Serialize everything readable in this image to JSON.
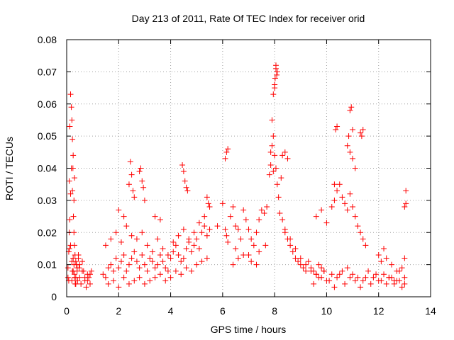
{
  "chart_data": {
    "type": "scatter",
    "title": "Day 213 of 2011, Rate Of TEC Index for receiver orid",
    "xlabel": "GPS time / hours",
    "ylabel": "ROTI / TECUs",
    "xlim": [
      0,
      14
    ],
    "ylim": [
      0,
      0.08
    ],
    "x_ticks": [
      0,
      2,
      4,
      6,
      8,
      10,
      12,
      14
    ],
    "x_tick_labels": [
      "0",
      "2",
      "4",
      "6",
      "8",
      "10",
      "12",
      "14"
    ],
    "y_ticks": [
      0,
      0.01,
      0.02,
      0.03,
      0.04,
      0.05,
      0.06,
      0.07,
      0.08
    ],
    "y_tick_labels": [
      "0",
      "0.01",
      "0.02",
      "0.03",
      "0.04",
      "0.05",
      "0.06",
      "0.07",
      "0.08"
    ],
    "grid": true,
    "marker": "+",
    "color": "#ff0000",
    "series": [
      {
        "x": [
          0.05,
          0.08,
          0.1,
          0.12,
          0.15,
          0.18,
          0.2,
          0.22,
          0.25,
          0.28,
          0.3,
          0.33,
          0.35,
          0.38,
          0.4,
          0.42,
          0.45,
          0.48,
          0.5,
          0.55,
          0.6,
          0.65,
          0.7,
          0.75,
          0.8,
          0.85,
          0.9,
          0.95,
          0.08,
          0.1,
          0.12,
          0.15,
          0.18,
          0.2,
          0.22,
          0.25,
          0.28,
          0.3,
          0.32,
          0.35,
          0.4,
          0.45,
          0.5,
          0.6,
          0.7,
          0.8,
          0.9,
          0.15,
          0.2,
          0.25,
          0.3,
          0.35,
          0.05,
          0.1,
          0.3,
          0.28,
          0.26,
          0.24,
          0.22,
          1.4,
          1.5,
          1.6,
          1.7,
          1.8,
          1.9,
          2.0,
          2.1,
          2.2,
          2.3,
          2.4,
          2.5,
          2.6,
          2.7,
          2.8,
          2.9,
          3.0,
          3.1,
          3.2,
          3.3,
          3.4,
          3.5,
          3.6,
          3.7,
          3.8,
          3.9,
          4.0,
          4.1,
          4.2,
          4.3,
          4.4,
          4.5,
          4.6,
          4.7,
          4.8,
          4.9,
          5.0,
          5.1,
          5.2,
          5.3,
          5.4,
          5.5,
          1.5,
          1.7,
          1.9,
          2.1,
          2.3,
          2.5,
          2.7,
          2.9,
          3.1,
          3.3,
          3.5,
          3.7,
          3.9,
          4.1,
          4.3,
          4.5,
          4.7,
          4.9,
          5.1,
          5.3,
          5.5,
          1.6,
          1.8,
          2.0,
          2.2,
          2.4,
          2.6,
          2.8,
          3.0,
          3.2,
          3.4,
          3.6,
          3.8,
          4.0,
          4.2,
          4.4,
          4.6,
          4.8,
          5.0,
          5.2,
          5.4,
          2.0,
          2.2,
          2.4,
          2.45,
          2.5,
          2.55,
          2.6,
          2.8,
          2.85,
          2.9,
          2.95,
          3.0,
          3.4,
          3.6,
          4.45,
          4.5,
          4.55,
          4.6,
          4.65,
          5.4,
          5.45,
          5.8,
          6.0,
          6.1,
          6.15,
          6.2,
          6.3,
          6.4,
          6.5,
          6.6,
          6.7,
          6.8,
          6.9,
          7.0,
          7.1,
          7.2,
          7.3,
          7.4,
          7.5,
          7.6,
          7.7,
          6.1,
          6.15,
          6.2,
          6.5,
          6.8,
          7.1,
          7.4,
          7.65,
          6.4,
          6.6,
          7.0,
          7.3,
          7.8,
          7.85,
          7.9,
          7.95,
          8.0,
          8.05,
          8.1,
          8.15,
          8.2,
          8.3,
          8.4,
          8.5,
          8.6,
          8.7,
          8.8,
          8.9,
          9.0,
          9.1,
          9.2,
          9.3,
          9.4,
          9.5,
          9.6,
          9.7,
          9.8,
          9.9,
          7.9,
          7.95,
          8.0,
          8.02,
          8.05,
          8.08,
          8.1,
          8.0,
          8.05,
          7.85,
          7.95,
          8.3,
          8.4,
          8.5,
          8.25,
          8.4,
          8.6,
          8.8,
          9.0,
          9.2,
          9.4,
          9.6,
          9.8,
          10.0,
          10.2,
          10.4,
          10.6,
          10.8,
          11.0,
          11.2,
          11.4,
          11.6,
          11.8,
          12.0,
          12.2,
          12.4,
          12.6,
          12.8,
          13.0,
          9.6,
          9.8,
          10.0,
          10.2,
          10.3,
          10.4,
          10.5,
          10.6,
          10.7,
          10.8,
          10.9,
          11.0,
          11.1,
          11.2,
          11.3,
          11.4,
          11.5,
          10.3,
          10.35,
          10.4,
          10.8,
          10.85,
          10.9,
          10.95,
          11.0,
          11.3,
          11.35,
          11.4,
          10.9,
          11.0,
          11.1,
          9.5,
          9.7,
          9.9,
          10.1,
          10.3,
          10.5,
          10.7,
          10.9,
          11.1,
          11.3,
          11.5,
          11.7,
          11.9,
          12.1,
          12.3,
          12.5,
          12.7,
          12.9,
          13.0,
          12.0,
          12.1,
          12.2,
          12.3,
          12.5,
          12.7,
          12.9,
          13.0,
          13.05,
          13.05,
          13.0,
          12.8,
          12.6,
          12.4
        ],
        "y": [
          0.006,
          0.005,
          0.015,
          0.024,
          0.032,
          0.04,
          0.005,
          0.008,
          0.012,
          0.01,
          0.007,
          0.004,
          0.006,
          0.01,
          0.008,
          0.005,
          0.012,
          0.009,
          0.006,
          0.004,
          0.011,
          0.008,
          0.005,
          0.003,
          0.007,
          0.006,
          0.004,
          0.008,
          0.014,
          0.036,
          0.053,
          0.063,
          0.059,
          0.055,
          0.049,
          0.044,
          0.02,
          0.016,
          0.013,
          0.011,
          0.009,
          0.013,
          0.01,
          0.008,
          0.006,
          0.005,
          0.007,
          0.016,
          0.011,
          0.008,
          0.006,
          0.004,
          0.009,
          0.02,
          0.037,
          0.03,
          0.025,
          0.04,
          0.033,
          0.007,
          0.006,
          0.009,
          0.01,
          0.008,
          0.012,
          0.009,
          0.011,
          0.013,
          0.008,
          0.01,
          0.012,
          0.014,
          0.011,
          0.009,
          0.013,
          0.01,
          0.008,
          0.012,
          0.011,
          0.009,
          0.01,
          0.013,
          0.011,
          0.009,
          0.008,
          0.012,
          0.014,
          0.016,
          0.013,
          0.011,
          0.012,
          0.015,
          0.017,
          0.014,
          0.016,
          0.018,
          0.015,
          0.02,
          0.022,
          0.019,
          0.021,
          0.016,
          0.018,
          0.02,
          0.017,
          0.022,
          0.019,
          0.018,
          0.02,
          0.016,
          0.014,
          0.018,
          0.015,
          0.013,
          0.017,
          0.019,
          0.021,
          0.018,
          0.02,
          0.023,
          0.025,
          0.028,
          0.004,
          0.005,
          0.003,
          0.006,
          0.004,
          0.005,
          0.006,
          0.004,
          0.005,
          0.006,
          0.007,
          0.005,
          0.006,
          0.008,
          0.007,
          0.009,
          0.008,
          0.01,
          0.011,
          0.012,
          0.027,
          0.025,
          0.035,
          0.042,
          0.038,
          0.033,
          0.031,
          0.039,
          0.04,
          0.036,
          0.034,
          0.03,
          0.025,
          0.024,
          0.041,
          0.039,
          0.036,
          0.034,
          0.033,
          0.031,
          0.029,
          0.022,
          0.029,
          0.043,
          0.045,
          0.046,
          0.025,
          0.028,
          0.022,
          0.021,
          0.018,
          0.027,
          0.024,
          0.021,
          0.018,
          0.016,
          0.02,
          0.024,
          0.027,
          0.026,
          0.028,
          0.021,
          0.019,
          0.017,
          0.015,
          0.013,
          0.011,
          0.014,
          0.016,
          0.01,
          0.012,
          0.013,
          0.01,
          0.038,
          0.041,
          0.047,
          0.05,
          0.044,
          0.04,
          0.035,
          0.031,
          0.026,
          0.024,
          0.021,
          0.018,
          0.016,
          0.014,
          0.012,
          0.011,
          0.01,
          0.009,
          0.008,
          0.011,
          0.009,
          0.008,
          0.007,
          0.01,
          0.009,
          0.008,
          0.055,
          0.063,
          0.066,
          0.068,
          0.071,
          0.069,
          0.07,
          0.065,
          0.072,
          0.045,
          0.039,
          0.044,
          0.045,
          0.043,
          0.037,
          0.02,
          0.018,
          0.015,
          0.012,
          0.01,
          0.008,
          0.007,
          0.006,
          0.005,
          0.007,
          0.006,
          0.008,
          0.009,
          0.007,
          0.006,
          0.005,
          0.008,
          0.006,
          0.005,
          0.007,
          0.006,
          0.005,
          0.008,
          0.006,
          0.025,
          0.027,
          0.023,
          0.028,
          0.03,
          0.033,
          0.035,
          0.031,
          0.029,
          0.027,
          0.032,
          0.028,
          0.025,
          0.022,
          0.02,
          0.018,
          0.016,
          0.035,
          0.052,
          0.053,
          0.047,
          0.05,
          0.058,
          0.059,
          0.052,
          0.051,
          0.05,
          0.052,
          0.045,
          0.043,
          0.04,
          0.004,
          0.006,
          0.008,
          0.005,
          0.003,
          0.007,
          0.004,
          0.006,
          0.005,
          0.003,
          0.006,
          0.004,
          0.007,
          0.005,
          0.004,
          0.006,
          0.005,
          0.003,
          0.004,
          0.013,
          0.011,
          0.015,
          0.012,
          0.01,
          0.008,
          0.009,
          0.012,
          0.033,
          0.029,
          0.028,
          0.005,
          0.004,
          0.006
        ]
      }
    ]
  }
}
